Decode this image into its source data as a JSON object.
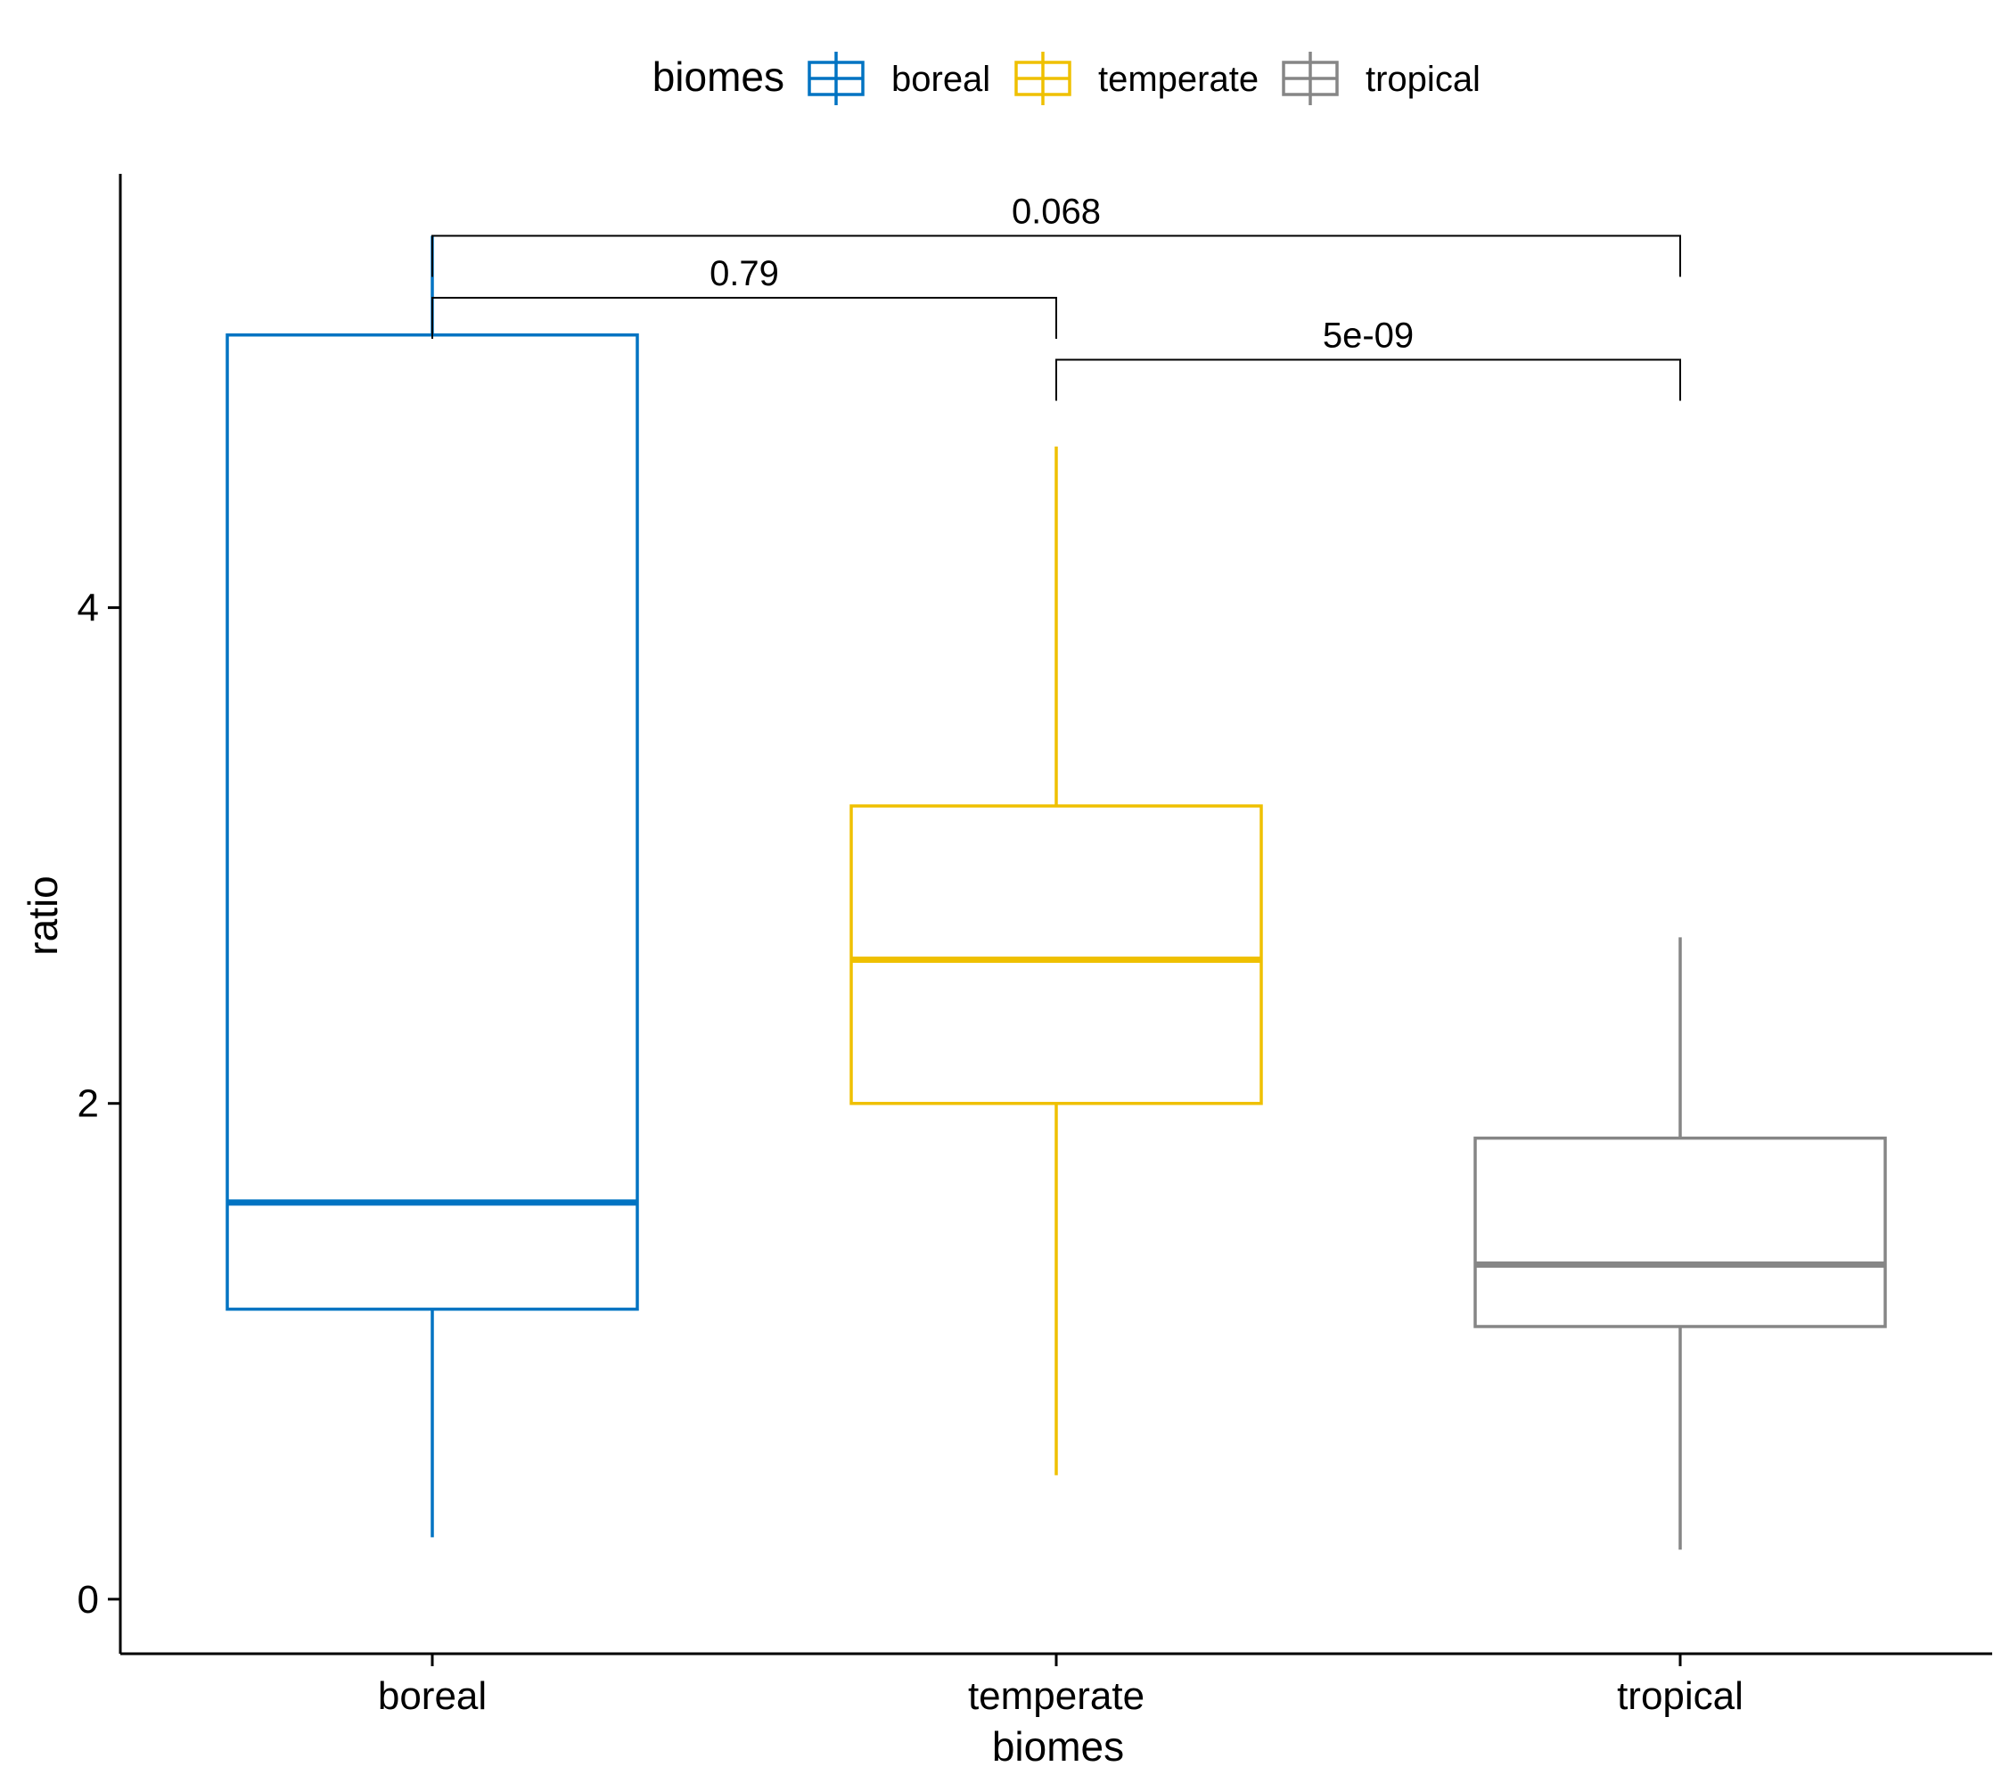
{
  "chart_data": {
    "type": "box",
    "xlabel": "biomes",
    "ylabel": "ratio",
    "categories": [
      "boreal",
      "temperate",
      "tropical"
    ],
    "yticks": [
      0,
      2,
      4
    ],
    "ylim": [
      -0.22,
      5.75
    ],
    "legend": {
      "title": "biomes",
      "placement": "top",
      "entries": [
        "boreal",
        "temperate",
        "tropical"
      ]
    },
    "colors": {
      "boreal": "#0073C2",
      "temperate": "#EFC000",
      "tropical": "#868686"
    },
    "boxes": [
      {
        "category": "boreal",
        "whisker_low": 0.25,
        "q1": 1.17,
        "median": 1.6,
        "q3": 5.1,
        "whisker_high": 5.5
      },
      {
        "category": "temperate",
        "whisker_low": 0.5,
        "q1": 2.0,
        "median": 2.58,
        "q3": 3.2,
        "whisker_high": 4.65
      },
      {
        "category": "tropical",
        "whisker_low": 0.2,
        "q1": 1.1,
        "median": 1.35,
        "q3": 1.86,
        "whisker_high": 2.67
      }
    ],
    "comparisons": [
      {
        "from": "boreal",
        "to": "tropical",
        "label": "0.068",
        "y": 5.5
      },
      {
        "from": "boreal",
        "to": "temperate",
        "label": "0.79",
        "y": 5.25
      },
      {
        "from": "temperate",
        "to": "tropical",
        "label": "5e-09",
        "y": 5.0
      }
    ],
    "grid": false
  }
}
